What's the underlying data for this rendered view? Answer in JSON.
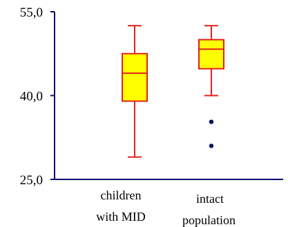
{
  "chart_data": {
    "type": "box",
    "ylim": [
      25,
      55
    ],
    "yticks": [
      {
        "value": 55,
        "label": "55,0"
      },
      {
        "value": 40,
        "label": "40,0"
      },
      {
        "value": 25,
        "label": "25,0"
      }
    ],
    "categories": [
      {
        "line1": "children",
        "line2": "with  MID"
      },
      {
        "line1": "intact",
        "line2": "population"
      }
    ],
    "boxes": [
      {
        "whisker_low": 29.0,
        "q1": 39.0,
        "median": 44.0,
        "q3": 47.5,
        "whisker_high": 52.5,
        "outliers": []
      },
      {
        "whisker_low": 40.0,
        "q1": 44.8,
        "median": 48.3,
        "q3": 50.0,
        "whisker_high": 52.5,
        "outliers": [
          35.3,
          31.0
        ]
      }
    ],
    "colors": {
      "box_fill": "#ffff00",
      "box_stroke": "#e0201a",
      "axis": "#0a0a6e",
      "outlier": "#0a0a6e"
    }
  }
}
